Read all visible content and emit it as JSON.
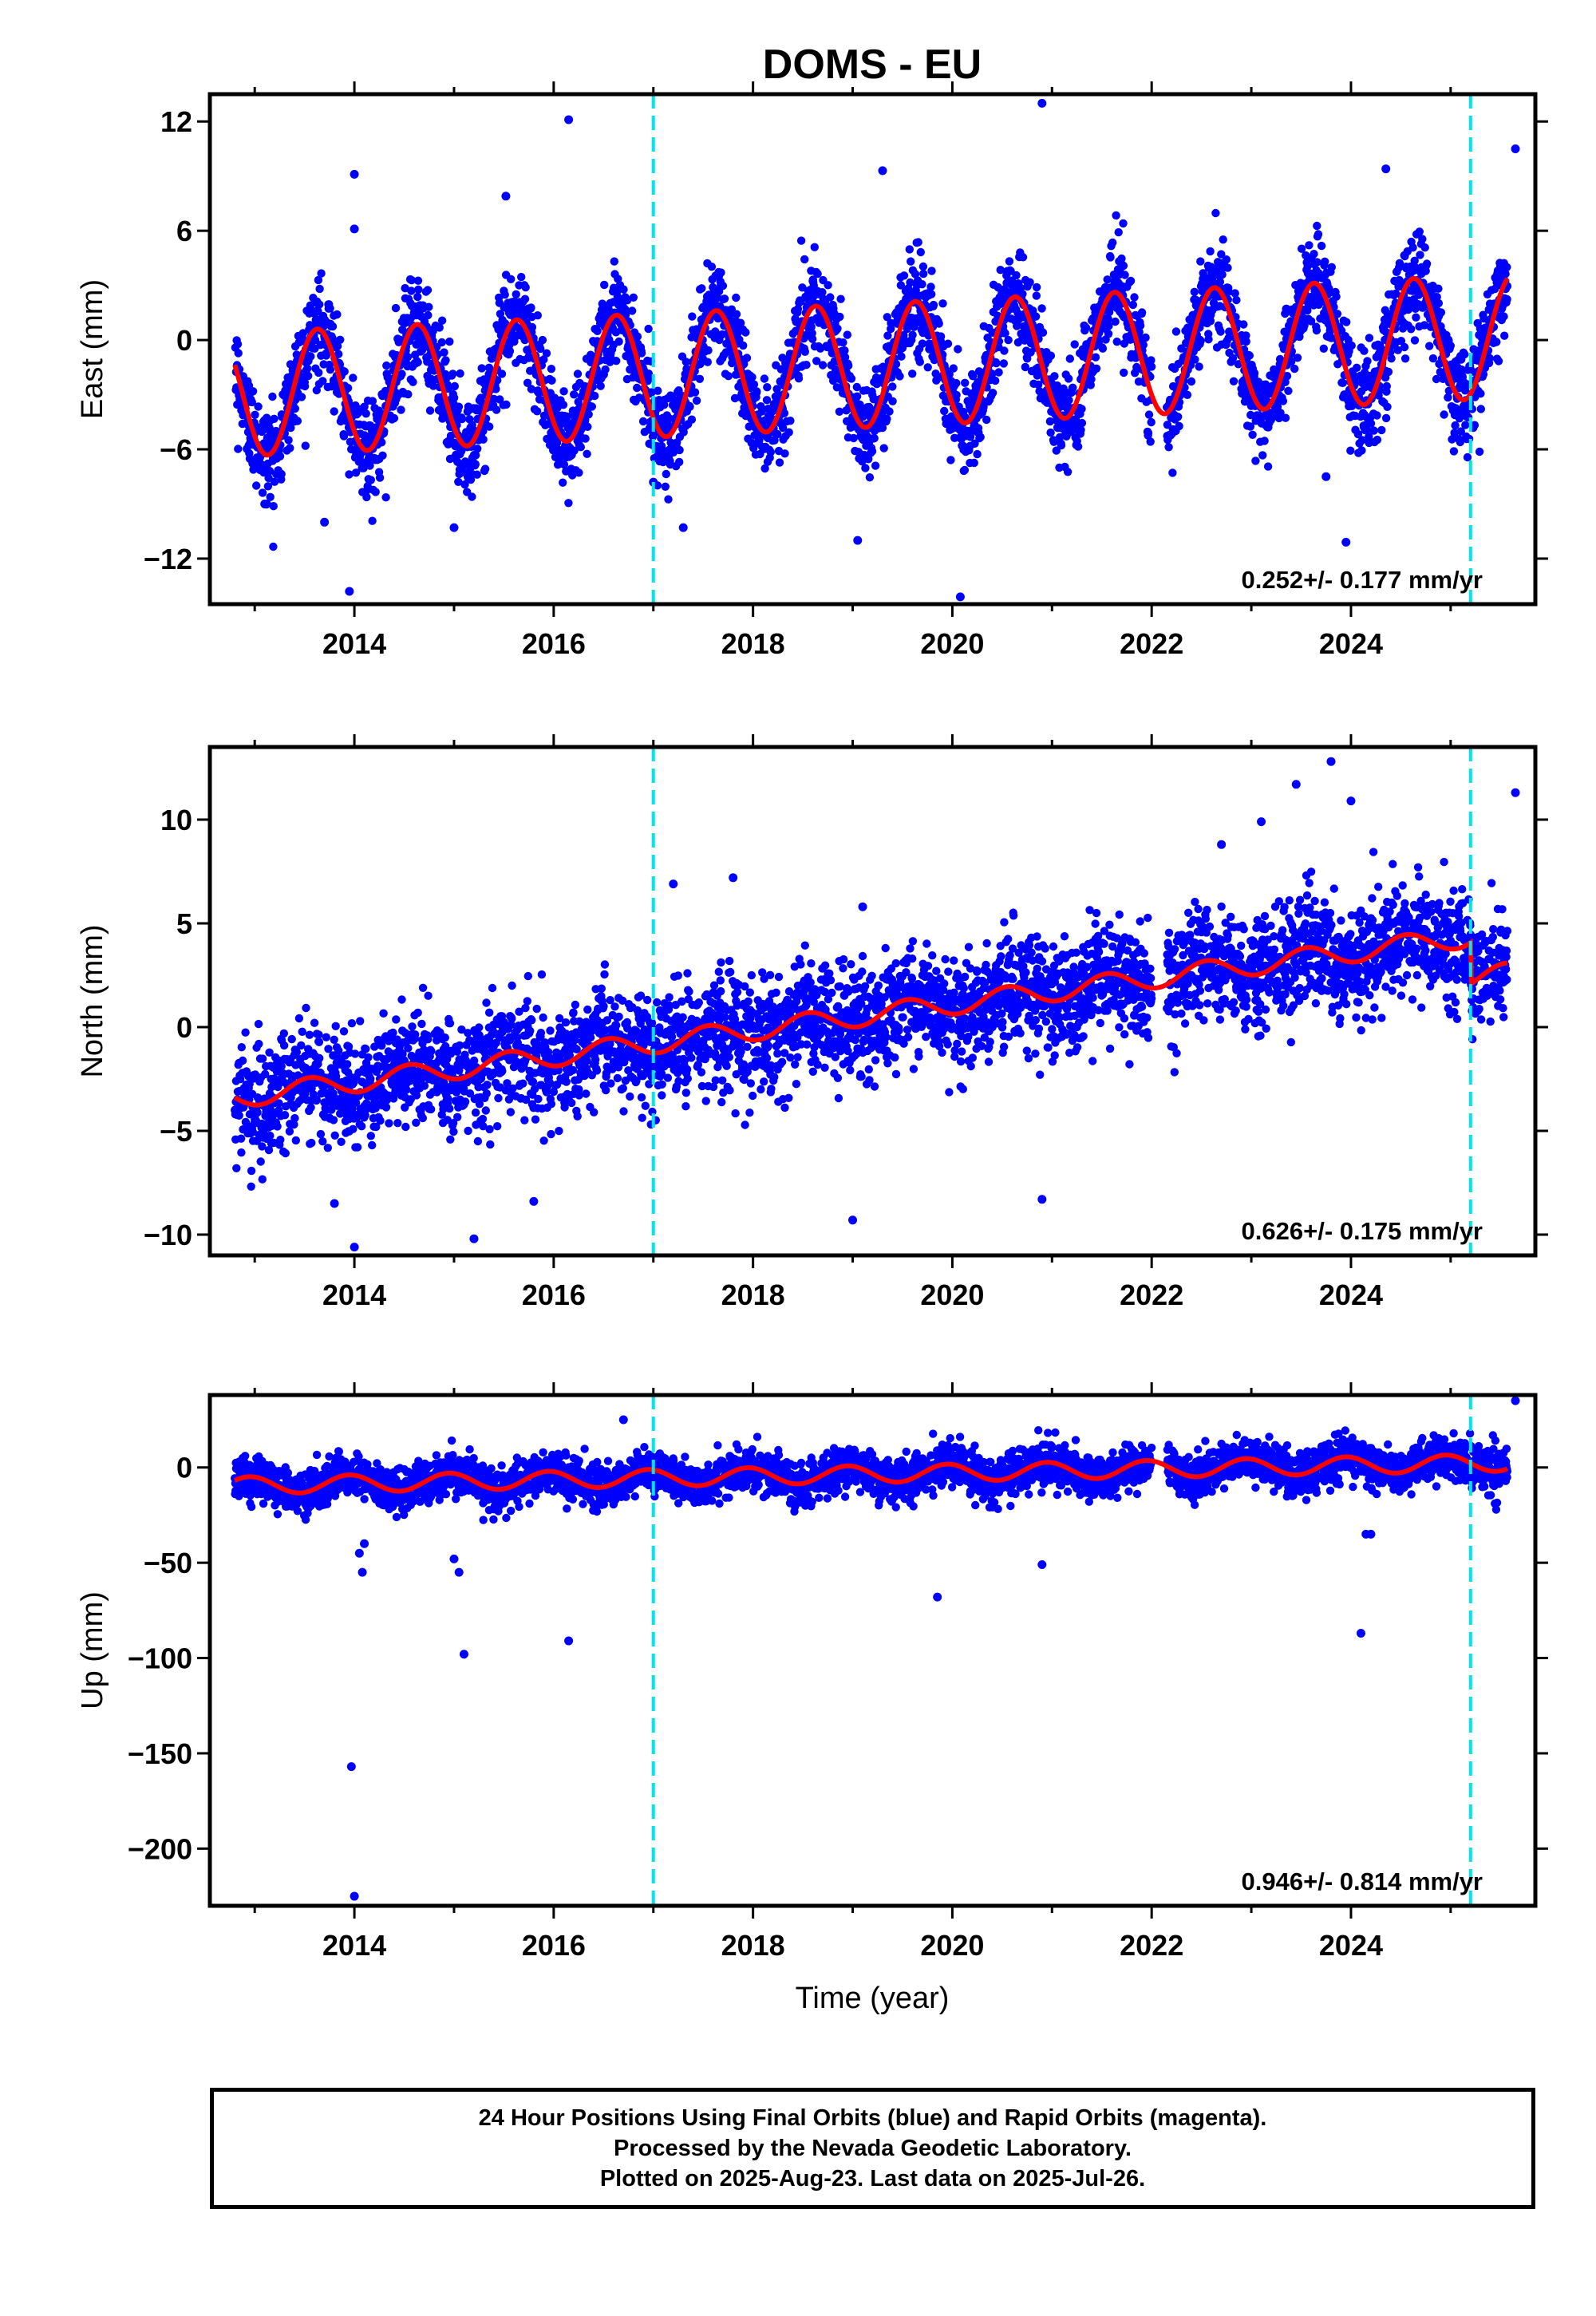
{
  "chart_data": {
    "title": "DOMS - EU",
    "x_range": [
      2012.55,
      2025.85
    ],
    "x_ticks": [
      "2014",
      "2016",
      "2018",
      "2020",
      "2022",
      "2024"
    ],
    "xlabel": "Time (year)",
    "type": "scatter",
    "vertical_markers_year": [
      2017.0,
      2025.2
    ],
    "colors": {
      "observations": "#0000ff",
      "model": "#ff0000",
      "markers": "#00e5ee"
    },
    "panels": [
      {
        "ylabel": "East (mm)",
        "ylim": [
          -14.5,
          13.5
        ],
        "y_ticks": [
          12,
          6,
          0,
          -6,
          -12
        ],
        "y_tick_labels": [
          "12",
          "6",
          "0",
          "−6",
          "−12"
        ],
        "rate_label": "0.252+/- 0.177 mm/yr",
        "model": {
          "slope": 0.252,
          "offset": -3.0,
          "amplitude": 3.4,
          "phase_year": 0.38,
          "offsets": []
        },
        "noise": 1.3,
        "outliers": [
          [
            2013.95,
            -13.8
          ],
          [
            2014.0,
            9.1
          ],
          [
            2014.0,
            6.1
          ],
          [
            2016.15,
            12.1
          ],
          [
            2015.52,
            7.9
          ],
          [
            2017.0,
            -7.8
          ],
          [
            2017.3,
            -10.3
          ],
          [
            2019.3,
            9.3
          ],
          [
            2019.05,
            -11.0
          ],
          [
            2020.08,
            -14.1
          ],
          [
            2020.9,
            13.0
          ],
          [
            2023.95,
            -11.1
          ],
          [
            2023.75,
            -7.5
          ],
          [
            2024.35,
            9.4
          ],
          [
            2025.65,
            10.5
          ],
          [
            2013.1,
            -9.0
          ],
          [
            2013.7,
            -10.0
          ],
          [
            2015.0,
            -10.3
          ]
        ]
      },
      {
        "ylabel": "North (mm)",
        "ylim": [
          -11.0,
          13.5
        ],
        "y_ticks": [
          10,
          5,
          0,
          -5,
          -10
        ],
        "y_tick_labels": [
          "10",
          "5",
          "0",
          "−5",
          "−10"
        ],
        "rate_label": "0.626+/- 0.175 mm/yr",
        "model": {
          "slope": 0.626,
          "offset": -3.4,
          "amplitude": 0.5,
          "phase_year": 0.3,
          "offsets": [
            [
              2025.2,
              -2.0
            ]
          ]
        },
        "noise": 1.3,
        "outliers": [
          [
            2014.0,
            -10.6
          ],
          [
            2015.2,
            -10.2
          ],
          [
            2019.0,
            -9.3
          ],
          [
            2020.9,
            -8.3
          ],
          [
            2023.45,
            11.7
          ],
          [
            2023.8,
            12.8
          ],
          [
            2025.65,
            11.3
          ],
          [
            2017.2,
            6.9
          ],
          [
            2017.8,
            7.2
          ],
          [
            2019.1,
            5.8
          ],
          [
            2022.7,
            8.8
          ],
          [
            2023.1,
            9.9
          ],
          [
            2024.0,
            10.9
          ],
          [
            2013.8,
            -8.5
          ],
          [
            2015.8,
            -8.4
          ]
        ]
      },
      {
        "ylabel": "Up (mm)",
        "ylim": [
          -230,
          38
        ],
        "y_ticks": [
          0,
          -50,
          -100,
          -150,
          -200
        ],
        "y_tick_labels": [
          "0",
          "−50",
          "−100",
          "−150",
          "−200"
        ],
        "rate_label": "0.946+/- 0.814 mm/yr",
        "model": {
          "slope": 0.946,
          "offset": -9.5,
          "amplitude": 4.5,
          "phase_year": 0.7,
          "offsets": []
        },
        "noise": 5.5,
        "outliers": [
          [
            2014.0,
            -225
          ],
          [
            2013.97,
            -157
          ],
          [
            2014.08,
            -55
          ],
          [
            2014.05,
            -45
          ],
          [
            2014.1,
            -40
          ],
          [
            2015.1,
            -98
          ],
          [
            2015.0,
            -48
          ],
          [
            2015.05,
            -55
          ],
          [
            2016.15,
            -91
          ],
          [
            2019.85,
            -68
          ],
          [
            2020.9,
            -51
          ],
          [
            2024.1,
            -87
          ],
          [
            2024.15,
            -35
          ],
          [
            2024.2,
            -35
          ],
          [
            2016.7,
            25
          ],
          [
            2025.65,
            35
          ]
        ]
      }
    ]
  },
  "footer": {
    "line1": "24 Hour Positions Using Final Orbits (blue) and Rapid Orbits (magenta).",
    "line2": "Processed by the Nevada Geodetic Laboratory.",
    "line3": "Plotted on 2025-Aug-23. Last data on 2025-Jul-26."
  }
}
